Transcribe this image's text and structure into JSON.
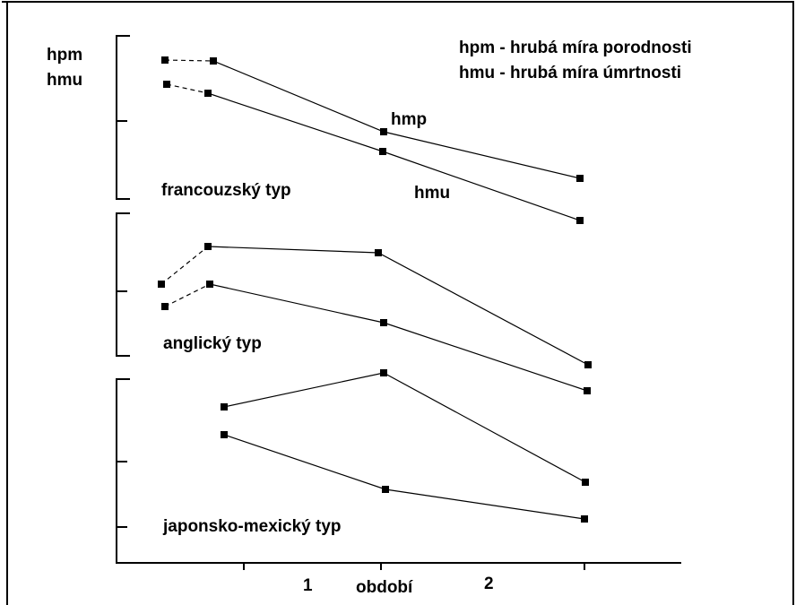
{
  "axis_labels": {
    "top": "hpm",
    "bottom": "hmu"
  },
  "legend": [
    "hpm - hrubá míra porodnosti",
    "hmu - hrubá míra úmrtnosti"
  ],
  "line_labels": {
    "birth": "hmp",
    "death": "hmu"
  },
  "types": [
    "francouzský typ",
    "anglický typ",
    "japonsko-mexický typ"
  ],
  "x_axis": {
    "ticks": [
      "1",
      "2"
    ],
    "label": "období"
  }
}
